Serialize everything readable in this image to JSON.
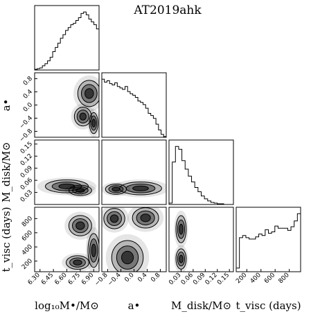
{
  "chart_data": {
    "type": "corner",
    "title": "AT2019ahk",
    "grid": false,
    "parameters": [
      {
        "key": "log_mass",
        "label": "log₁₀M•/M⊙",
        "range": [
          6.24,
          6.96
        ],
        "ticks": [
          6.3,
          6.45,
          6.6,
          6.75,
          6.9
        ],
        "tick_labels": [
          "6.30",
          "6.45",
          "6.60",
          "6.75",
          "6.90"
        ],
        "hist": [
          1,
          2,
          3,
          6,
          9,
          13,
          18,
          26,
          32,
          38,
          45,
          50,
          56,
          60,
          64,
          66,
          70,
          74,
          80,
          82,
          78,
          72,
          68,
          64,
          58
        ]
      },
      {
        "key": "spin",
        "label": "a•",
        "range": [
          -0.98,
          0.98
        ],
        "ticks": [
          -0.8,
          -0.4,
          0.0,
          0.4,
          0.8
        ],
        "tick_labels": [
          "−0.8",
          "−0.4",
          "0.0",
          "0.4",
          "0.8"
        ],
        "y_ticks": [
          -0.8,
          -0.4,
          0.0,
          0.4,
          0.8
        ],
        "y_tick_labels": [
          "−0.8",
          "−0.4",
          "0.0",
          "0.4",
          "0.8"
        ],
        "hist": [
          80,
          76,
          78,
          74,
          72,
          75,
          70,
          68,
          66,
          70,
          63,
          60,
          58,
          55,
          50,
          48,
          45,
          40,
          33,
          30,
          26,
          18,
          10,
          4,
          1
        ]
      },
      {
        "key": "disk_mass",
        "label": "M_disk/M⊙",
        "range": [
          0.0,
          0.16
        ],
        "ticks": [
          0.03,
          0.06,
          0.09,
          0.12,
          0.15
        ],
        "tick_labels": [
          "0.03",
          "0.06",
          "0.09",
          "0.12",
          "0.15"
        ],
        "y_ticks": [
          0.03,
          0.06,
          0.09,
          0.12,
          0.15
        ],
        "y_tick_labels": [
          "0.03",
          "0.06",
          "0.09",
          "0.12",
          "0.15"
        ],
        "hist": [
          2,
          60,
          82,
          78,
          62,
          50,
          40,
          32,
          24,
          18,
          12,
          8,
          5,
          3,
          2,
          1,
          1,
          0,
          0,
          0
        ]
      },
      {
        "key": "t_visc",
        "label": "t_visc (days)",
        "range": [
          50,
          960
        ],
        "ticks": [
          200,
          400,
          600,
          800
        ],
        "tick_labels": [
          "200",
          "400",
          "600",
          "800"
        ],
        "y_ticks": [
          200,
          400,
          600,
          800
        ],
        "y_tick_labels": [
          "200",
          "400",
          "600",
          "800"
        ],
        "hist": [
          5,
          47,
          50,
          47,
          45,
          45,
          48,
          52,
          50,
          58,
          53,
          55,
          63,
          60,
          60,
          60,
          57,
          62,
          70,
          80
        ]
      }
    ],
    "joint_modes": [
      {
        "x": "log_mass",
        "y": "spin",
        "modes": [
          [
            6.78,
            -0.35,
            0.06,
            0.18
          ],
          [
            6.9,
            -0.55,
            0.03,
            0.2
          ],
          [
            6.85,
            0.35,
            0.08,
            0.25
          ]
        ]
      },
      {
        "x": "log_mass",
        "y": "disk_mass",
        "modes": [
          [
            6.75,
            0.035,
            0.08,
            0.008
          ],
          [
            6.6,
            0.045,
            0.15,
            0.01
          ]
        ]
      },
      {
        "x": "spin",
        "y": "disk_mass",
        "modes": [
          [
            -0.55,
            0.038,
            0.2,
            0.008
          ],
          [
            0.2,
            0.04,
            0.4,
            0.01
          ]
        ]
      },
      {
        "x": "log_mass",
        "y": "t_visc",
        "modes": [
          [
            6.75,
            700,
            0.08,
            90
          ],
          [
            6.72,
            180,
            0.08,
            60
          ],
          [
            6.9,
            350,
            0.04,
            150
          ]
        ]
      },
      {
        "x": "spin",
        "y": "t_visc",
        "modes": [
          [
            -0.6,
            800,
            0.2,
            90
          ],
          [
            0.35,
            810,
            0.25,
            90
          ],
          [
            -0.2,
            250,
            0.3,
            150
          ]
        ]
      },
      {
        "x": "disk_mass",
        "y": "t_visc",
        "modes": [
          [
            0.03,
            650,
            0.008,
            120
          ],
          [
            0.03,
            230,
            0.008,
            90
          ]
        ]
      }
    ]
  }
}
